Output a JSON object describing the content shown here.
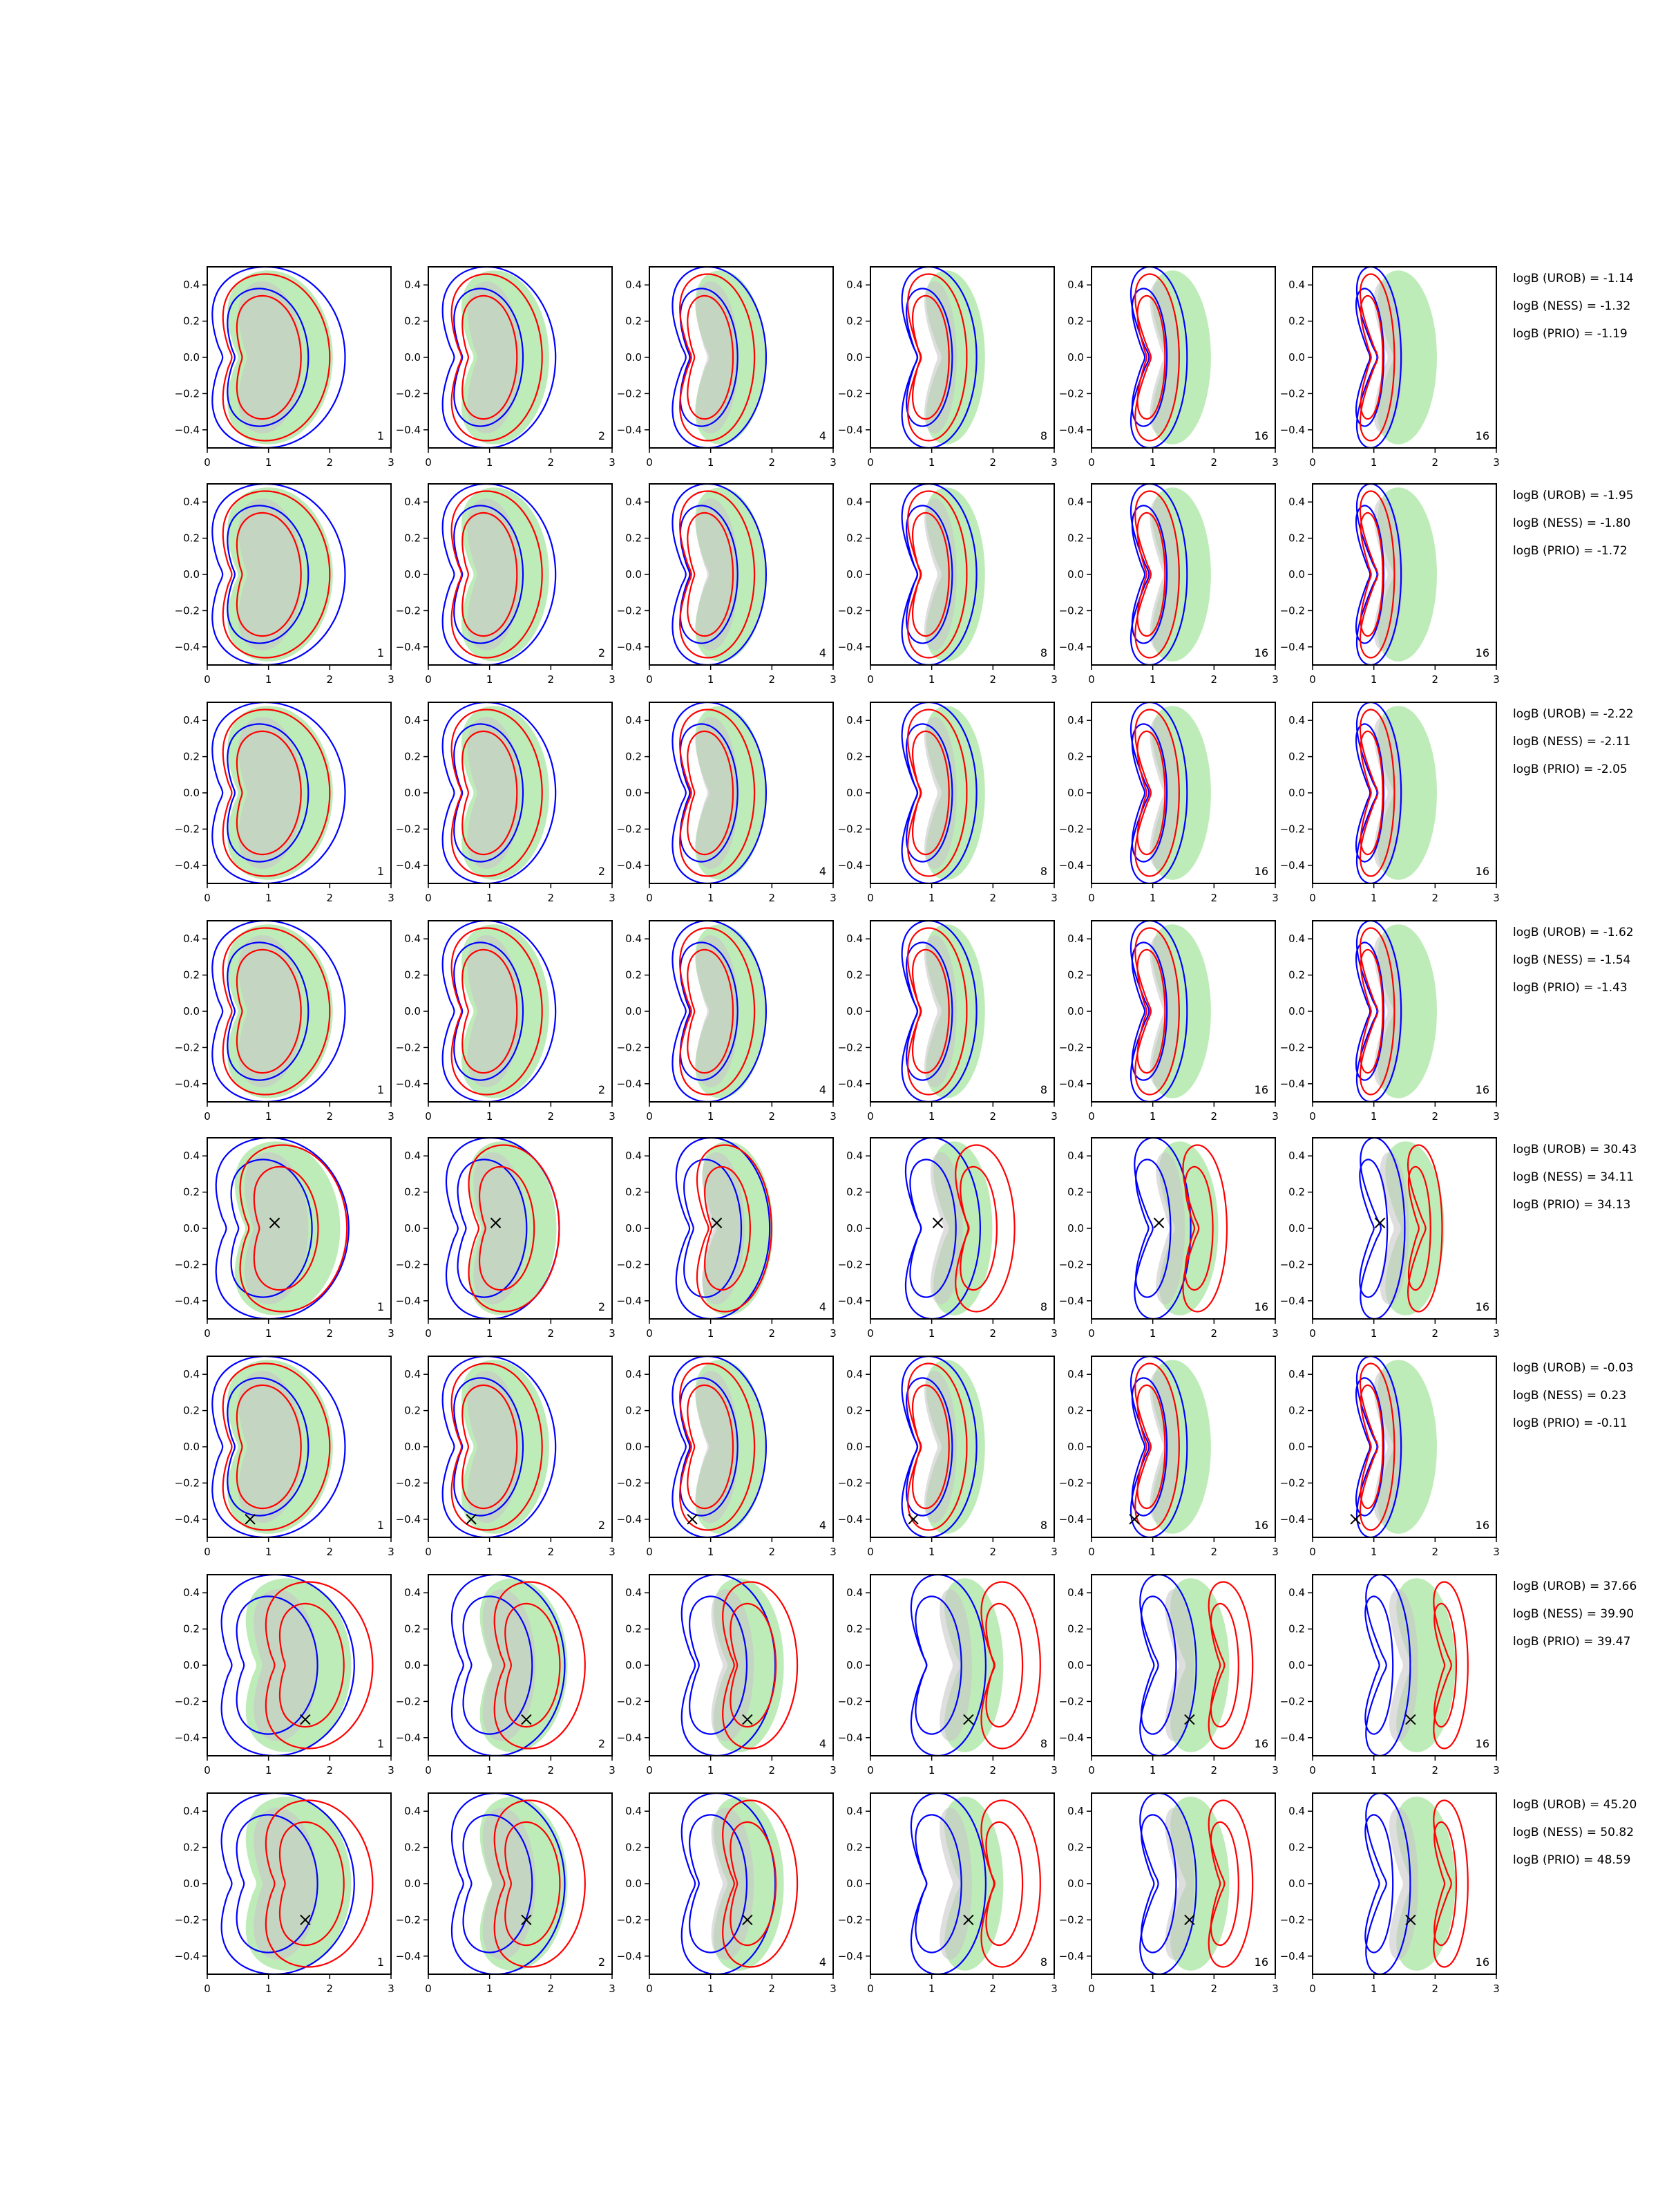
{
  "chart_data": {
    "type": "contour",
    "description_free": true,
    "xlim": [
      0,
      3
    ],
    "ylim": [
      -0.5,
      0.5
    ],
    "xticks": [
      "0",
      "1",
      "2",
      "3"
    ],
    "yticks": [
      "0.4",
      "0.2",
      "0.0",
      "−0.2",
      "−0.4"
    ],
    "ytick_values": [
      0.4,
      0.2,
      0.0,
      -0.2,
      -0.4
    ],
    "columns": [
      {
        "label": "1"
      },
      {
        "label": "2"
      },
      {
        "label": "4"
      },
      {
        "label": "8"
      },
      {
        "label": "16"
      },
      {
        "label": "16"
      }
    ],
    "colors": {
      "blue": "#0000ff",
      "red": "#ff0000",
      "green_fill": "#a8e6a0",
      "grey_fill": "#c8c8c8",
      "marker": "#000000"
    },
    "rows": [
      {
        "marker": null,
        "stats": [
          "logB (UROB) = -1.14",
          "logB (NESS) = -1.32",
          "logB (PRIO) = -1.19"
        ]
      },
      {
        "marker": null,
        "stats": [
          "logB (UROB) = -1.95",
          "logB (NESS) = -1.80",
          "logB (PRIO) = -1.72"
        ]
      },
      {
        "marker": null,
        "stats": [
          "logB (UROB) = -2.22",
          "logB (NESS) = -2.11",
          "logB (PRIO) = -2.05"
        ]
      },
      {
        "marker": null,
        "stats": [
          "logB (UROB) = -1.62",
          "logB (NESS) = -1.54",
          "logB (PRIO) = -1.43"
        ]
      },
      {
        "marker": [
          1.1,
          0.03
        ],
        "stats": [
          "logB (UROB) = 30.43",
          "logB (NESS) = 34.11",
          "logB (PRIO) = 34.13"
        ]
      },
      {
        "marker": [
          0.7,
          -0.4
        ],
        "stats": [
          "logB (UROB) = -0.03",
          "logB (NESS) = 0.23",
          "logB (PRIO) = -0.11"
        ]
      },
      {
        "marker": [
          1.6,
          -0.3
        ],
        "stats": [
          "logB (UROB) = 37.66",
          "logB (NESS) = 39.90",
          "logB (PRIO) = 39.47"
        ]
      },
      {
        "marker": [
          1.6,
          -0.2
        ],
        "stats": [
          "logB (UROB) = 45.20",
          "logB (NESS) = 50.82",
          "logB (PRIO) = 48.59"
        ]
      }
    ]
  }
}
